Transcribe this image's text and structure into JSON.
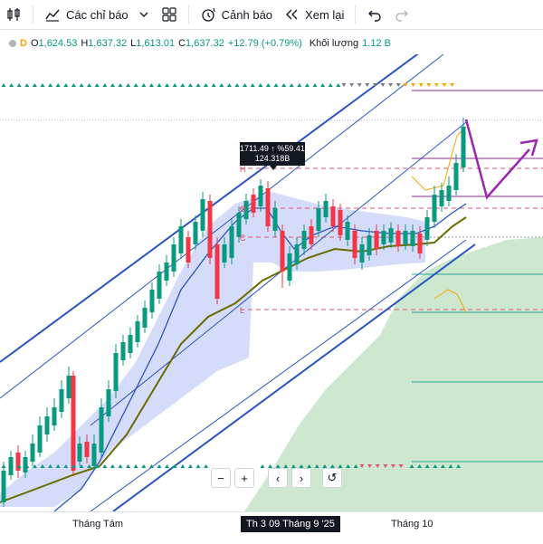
{
  "toolbar": {
    "indicators_label": "Các chỉ báo",
    "alerts_label": "Cảnh báo",
    "replay_label": "Xem lại"
  },
  "legend": {
    "symbol_marker": "D",
    "open_key": "O",
    "open": "1,624.53",
    "high_key": "H",
    "high": "1,637.32",
    "low_key": "L",
    "low": "1,613.01",
    "close_key": "C",
    "close": "1,637.32",
    "change": "+12.79 (+0.79%)",
    "volume_label": "Khối lượng",
    "volume": "1.12 B"
  },
  "tooltip": {
    "line1": "1711.49 ↑ %59.41",
    "line2": "124.318B"
  },
  "chart_labels": {
    "h": "H",
    "o": "O",
    "c": "C",
    "l": "L"
  },
  "xaxis": {
    "labels": [
      "Tháng Tám",
      "Tháng 10"
    ],
    "highlight": "Th 3 09 Tháng 9 '25"
  },
  "nav": {
    "zoom_out": "−",
    "zoom_in": "+",
    "prev": "‹",
    "next": "›",
    "reset": "↺"
  },
  "colors": {
    "up": "#089981",
    "down": "#f23645",
    "channel": "#2a55c0",
    "cloud": "#a5d6a7",
    "band": "#b8c4f5",
    "olive": "#6b6b00",
    "magenta": "#8e2a8e",
    "projection": "#9c27b0"
  }
}
